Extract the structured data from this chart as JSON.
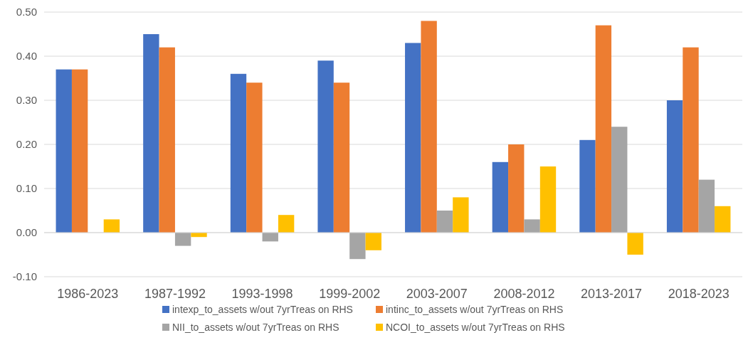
{
  "chart_data": {
    "type": "bar",
    "categories": [
      "1986-2023",
      "1987-1992",
      "1993-1998",
      "1999-2002",
      "2003-2007",
      "2008-2012",
      "2013-2017",
      "2018-2023"
    ],
    "series": [
      {
        "name": "intexp_to_assets w/out 7yrTreas on RHS",
        "color": "#4472c4",
        "values": [
          0.37,
          0.45,
          0.36,
          0.39,
          0.43,
          0.16,
          0.21,
          0.3
        ]
      },
      {
        "name": "intinc_to_assets w/out 7yrTreas on RHS",
        "color": "#ed7d31",
        "values": [
          0.37,
          0.42,
          0.34,
          0.34,
          0.48,
          0.2,
          0.47,
          0.42
        ]
      },
      {
        "name": "NII_to_assets w/out 7yrTreas on RHS",
        "color": "#a5a5a5",
        "values": [
          null,
          -0.03,
          -0.02,
          -0.06,
          0.05,
          0.03,
          0.24,
          0.12
        ]
      },
      {
        "name": "NCOI_to_assets w/out 7yrTreas on RHS",
        "color": "#ffc000",
        "values": [
          0.03,
          -0.01,
          0.04,
          -0.04,
          0.08,
          0.15,
          -0.05,
          0.06
        ]
      }
    ],
    "ylim": [
      -0.1,
      0.5
    ],
    "yticks": [
      {
        "value": -0.1,
        "label": "-0.10"
      },
      {
        "value": 0,
        "label": "0.00"
      },
      {
        "value": 0.1,
        "label": "0.10"
      },
      {
        "value": 0.2,
        "label": "0.20"
      },
      {
        "value": 0.3,
        "label": "0.30"
      },
      {
        "value": 0.4,
        "label": "0.40"
      },
      {
        "value": 0.5,
        "label": "0.50"
      }
    ],
    "grid": "y",
    "legend": "bottom"
  }
}
